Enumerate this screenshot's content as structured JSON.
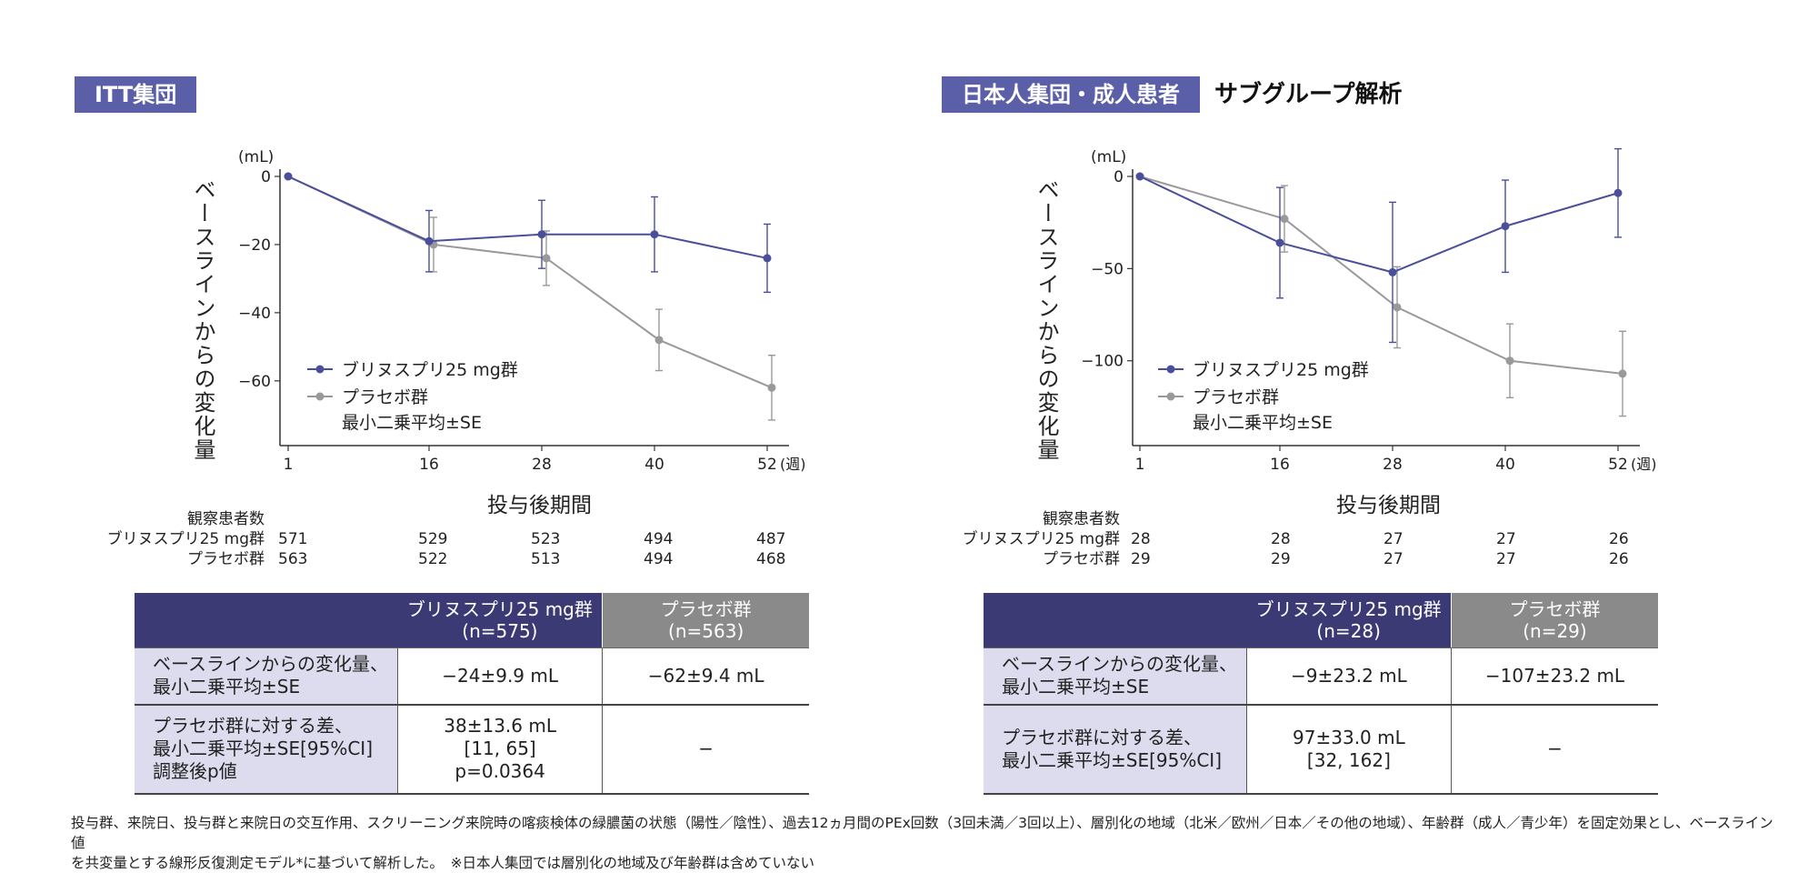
{
  "panels": [
    {
      "tag": "ITT集団",
      "subtitle": "",
      "ylabel": "ベースラインからの変化量",
      "unit_label": "(mL)",
      "xtitle": "投与後期間",
      "week_suffix": "(週)",
      "legend": {
        "series1": "ブリヌスプリ25 mg群",
        "series2": "プラセボ群",
        "note": "最小二乗平均±SE"
      },
      "counts": {
        "header": "観察患者数",
        "rows": [
          {
            "label": "ブリヌスプリ25 mg群",
            "values": [
              "571",
              "529",
              "523",
              "494",
              "487"
            ]
          },
          {
            "label": "プラセボ群",
            "values": [
              "563",
              "522",
              "513",
              "494",
              "468"
            ]
          }
        ]
      },
      "table": {
        "col1": [
          "ブリヌスプリ25 mg群",
          "(n=575)"
        ],
        "col2": [
          "プラセボ群",
          "(n=563)"
        ],
        "rows": [
          {
            "head": [
              "ベースラインからの変化量、",
              "最小二乗平均±SE"
            ],
            "c1": [
              "−24±9.9 mL"
            ],
            "c2": [
              "−62±9.4 mL"
            ]
          },
          {
            "head": [
              "プラセボ群に対する差、",
              "最小二乗平均±SE[95%CI]",
              "調整後p値"
            ],
            "c1": [
              "38±13.6 mL",
              "[11, 65]",
              "p=0.0364"
            ],
            "c2": [
              "−"
            ]
          }
        ]
      }
    },
    {
      "tag": "日本人集団・成人患者",
      "subtitle": "サブグループ解析",
      "ylabel": "ベースラインからの変化量",
      "unit_label": "(mL)",
      "xtitle": "投与後期間",
      "week_suffix": "(週)",
      "legend": {
        "series1": "ブリヌスプリ25 mg群",
        "series2": "プラセボ群",
        "note": "最小二乗平均±SE"
      },
      "counts": {
        "header": "観察患者数",
        "rows": [
          {
            "label": "ブリヌスプリ25 mg群",
            "values": [
              "28",
              "28",
              "27",
              "27",
              "26"
            ]
          },
          {
            "label": "プラセボ群",
            "values": [
              "29",
              "29",
              "27",
              "27",
              "26"
            ]
          }
        ]
      },
      "table": {
        "col1": [
          "ブリヌスプリ25 mg群",
          "(n=28)"
        ],
        "col2": [
          "プラセボ群",
          "(n=29)"
        ],
        "rows": [
          {
            "head": [
              "ベースラインからの変化量、",
              "最小二乗平均±SE"
            ],
            "c1": [
              "−9±23.2 mL"
            ],
            "c2": [
              "−107±23.2 mL"
            ]
          },
          {
            "head": [
              "プラセボ群に対する差、",
              "最小二乗平均±SE[95%CI]"
            ],
            "c1": [
              "97±33.0 mL",
              "[32, 162]"
            ],
            "c2": [
              "−"
            ]
          }
        ]
      }
    }
  ],
  "footnote": [
    "投与群、来院日、投与群と来院日の交互作用、スクリーニング来院時の喀痰検体の緑膿菌の状態（陽性／陰性）、過去12ヵ月間のPEx回数（3回未満／3回以上）、層別化の地域（北米／欧州／日本／その他の地域）、年齢群（成人／青少年）を固定効果とし、ベースライン値",
    "を共変量とする線形反復測定モデル*に基づいて解析した。　※日本人集団では層別化の地域及び年齢群は含めていない"
  ],
  "chart_data": [
    {
      "type": "line",
      "x": [
        1,
        16,
        28,
        40,
        52
      ],
      "xticks": [
        "1",
        "16",
        "28",
        "40",
        "52"
      ],
      "yticks": [
        0,
        -20,
        -40,
        -60
      ],
      "ylim": [
        -79,
        0
      ],
      "colors": {
        "series1": "#4a4f9c",
        "series2": "#999999"
      },
      "series": [
        {
          "name": "ブリヌスプリ25 mg群",
          "values": [
            0,
            -19,
            -17,
            -17,
            -24
          ],
          "err": [
            0,
            9,
            10,
            11,
            10
          ]
        },
        {
          "name": "プラセボ群",
          "values": [
            0,
            -20,
            -24,
            -48,
            -62
          ],
          "err": [
            0,
            8,
            8,
            9,
            9.5
          ]
        }
      ]
    },
    {
      "type": "line",
      "x": [
        1,
        16,
        28,
        40,
        52
      ],
      "xticks": [
        "1",
        "16",
        "28",
        "40",
        "52"
      ],
      "yticks": [
        0,
        -50,
        -100
      ],
      "ylim": [
        -146,
        0
      ],
      "colors": {
        "series1": "#4a4f9c",
        "series2": "#999999"
      },
      "series": [
        {
          "name": "ブリヌスプリ25 mg群",
          "values": [
            0,
            -36,
            -52,
            -27,
            -9
          ],
          "err": [
            0,
            30,
            38,
            25,
            24
          ]
        },
        {
          "name": "プラセボ群",
          "values": [
            0,
            -23,
            -71,
            -100,
            -107
          ],
          "err": [
            0,
            18,
            22,
            20,
            23
          ]
        }
      ]
    }
  ]
}
